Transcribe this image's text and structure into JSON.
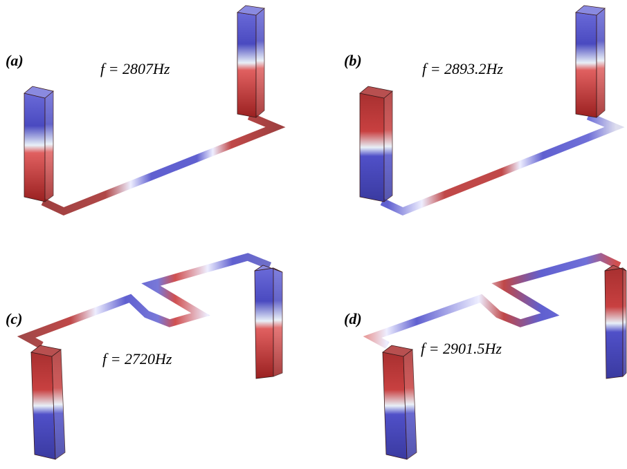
{
  "panels": [
    {
      "label": "(a)",
      "caption": "f = 2807Hz"
    },
    {
      "label": "(b)",
      "caption": "f = 2893.2Hz"
    },
    {
      "label": "(c)",
      "caption": "f = 2720Hz"
    },
    {
      "label": "(d)",
      "caption": "f = 2901.5Hz"
    }
  ]
}
